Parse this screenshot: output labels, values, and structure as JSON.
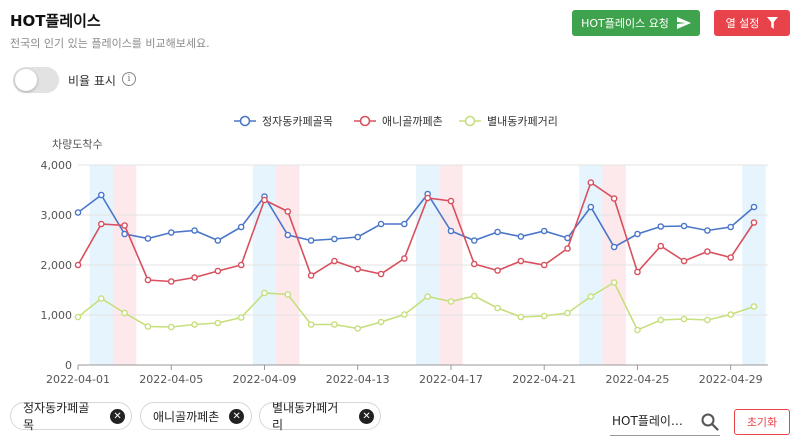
{
  "header": {
    "title": "HOT플레이스",
    "subtitle": "전국의 인기 있는 플레이스를 비교해보세요.",
    "request_button": "HOT플레이스 요청",
    "columns_button": "열 설정"
  },
  "controls": {
    "ratio_toggle_label": "비율 표시",
    "ratio_toggle_on": false
  },
  "colors": {
    "request_button": "#3fa34d",
    "columns_button": "#e8434a",
    "highlight_blue": "#e6f4fd",
    "highlight_pink": "#fde8ec"
  },
  "chart_data": {
    "type": "line",
    "ylabel": "차량도착수",
    "ylim": [
      0,
      4000
    ],
    "yticks": [
      "0",
      "1,000",
      "2,000",
      "3,000",
      "4,000"
    ],
    "x": [
      "2022-04-01",
      "2022-04-02",
      "2022-04-03",
      "2022-04-04",
      "2022-04-05",
      "2022-04-06",
      "2022-04-07",
      "2022-04-08",
      "2022-04-09",
      "2022-04-10",
      "2022-04-11",
      "2022-04-12",
      "2022-04-13",
      "2022-04-14",
      "2022-04-15",
      "2022-04-16",
      "2022-04-17",
      "2022-04-18",
      "2022-04-19",
      "2022-04-20",
      "2022-04-21",
      "2022-04-22",
      "2022-04-23",
      "2022-04-24",
      "2022-04-25",
      "2022-04-26",
      "2022-04-27",
      "2022-04-28",
      "2022-04-29",
      "2022-04-30"
    ],
    "xticks": [
      "2022-04-01",
      "2022-04-05",
      "2022-04-09",
      "2022-04-13",
      "2022-04-17",
      "2022-04-21",
      "2022-04-25",
      "2022-04-29"
    ],
    "grid": "horizontal",
    "legend_position": "top",
    "saturday_highlight": [
      "2022-04-02",
      "2022-04-09",
      "2022-04-16",
      "2022-04-23",
      "2022-04-30"
    ],
    "sunday_highlight": [
      "2022-04-03",
      "2022-04-10",
      "2022-04-17",
      "2022-04-24"
    ],
    "series": [
      {
        "name": "정자동카페골목",
        "color": "#4a76c9",
        "values": [
          3050,
          3400,
          2620,
          2530,
          2650,
          2690,
          2490,
          2760,
          3370,
          2600,
          2490,
          2520,
          2560,
          2820,
          2820,
          3420,
          2680,
          2490,
          2660,
          2570,
          2680,
          2540,
          3160,
          2360,
          2620,
          2770,
          2780,
          2690,
          2760,
          3160
        ]
      },
      {
        "name": "애니골까페촌",
        "color": "#d8505e",
        "values": [
          2000,
          2820,
          2790,
          1700,
          1670,
          1750,
          1880,
          2000,
          3300,
          3070,
          1790,
          2080,
          1920,
          1820,
          2130,
          3340,
          3280,
          2020,
          1890,
          2080,
          2000,
          2330,
          3650,
          3330,
          1860,
          2380,
          2080,
          2270,
          2150,
          2850
        ]
      },
      {
        "name": "별내동카페거리",
        "color": "#c6df7d",
        "values": [
          960,
          1330,
          1040,
          770,
          760,
          810,
          840,
          950,
          1440,
          1410,
          810,
          810,
          730,
          860,
          1010,
          1370,
          1270,
          1380,
          1140,
          960,
          980,
          1040,
          1370,
          1650,
          700,
          900,
          920,
          900,
          1010,
          1170
        ]
      }
    ]
  },
  "chips": [
    {
      "label": "정자동카페골목"
    },
    {
      "label": "애니골까페촌"
    },
    {
      "label": "별내동카페거리"
    }
  ],
  "search": {
    "value": "HOT플레이…"
  },
  "reset_button": "초기화"
}
